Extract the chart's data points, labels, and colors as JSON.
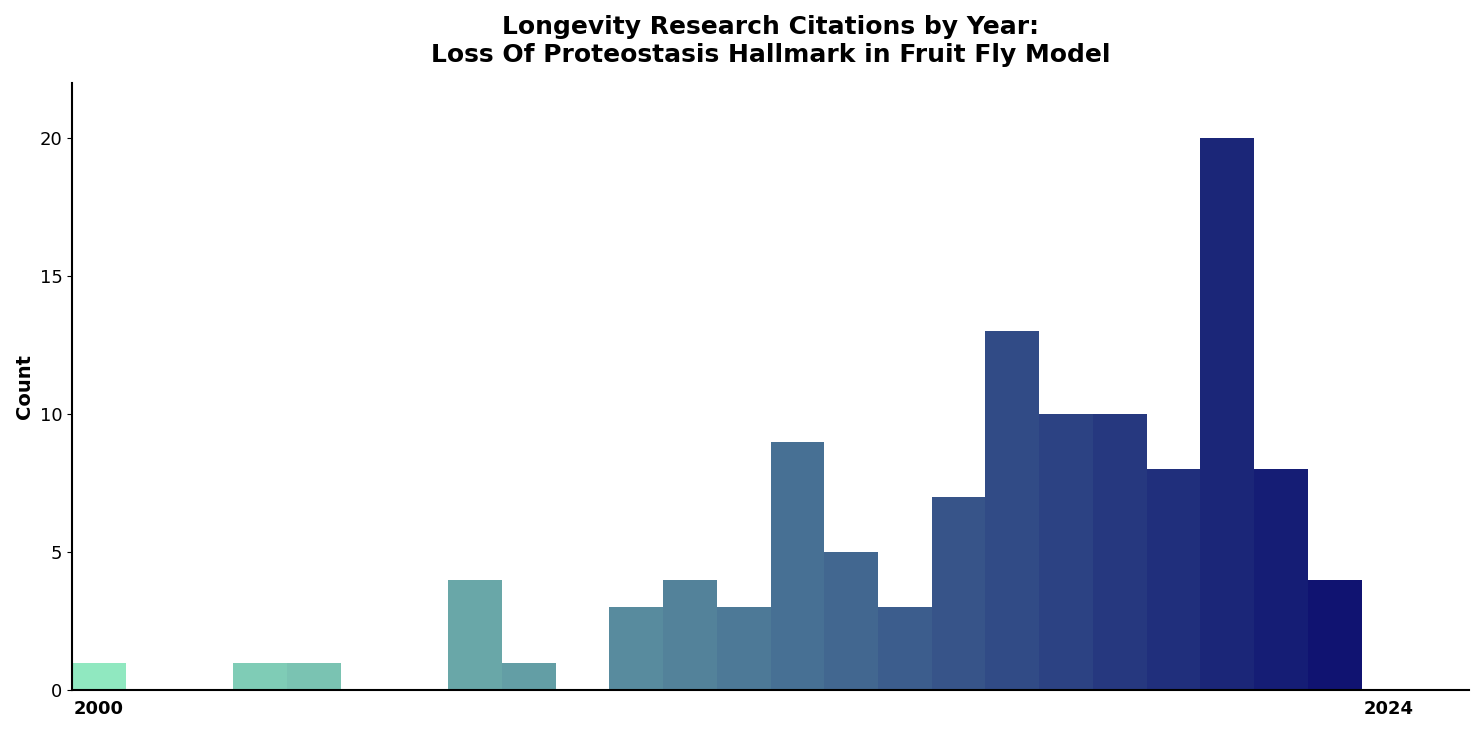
{
  "title_line1": "Longevity Research Citations by Year:",
  "title_line2": "Loss Of Proteostasis Hallmark in Fruit Fly Model",
  "xlabel": "",
  "ylabel": "Count",
  "years": [
    2000,
    2001,
    2002,
    2003,
    2004,
    2005,
    2006,
    2007,
    2008,
    2009,
    2010,
    2011,
    2012,
    2013,
    2014,
    2015,
    2016,
    2017,
    2018,
    2019,
    2020,
    2021,
    2022,
    2023,
    2024
  ],
  "counts": [
    1,
    0,
    0,
    1,
    1,
    0,
    0,
    4,
    1,
    0,
    3,
    4,
    3,
    9,
    5,
    3,
    7,
    13,
    10,
    10,
    8,
    20,
    8,
    4,
    0
  ],
  "ylim": [
    0,
    22
  ],
  "yticks": [
    0,
    5,
    10,
    15,
    20
  ],
  "xlim_left": 1999.5,
  "xlim_right": 2025.5,
  "xtick_left": 2000,
  "xtick_right": 2024,
  "bar_width": 1.0,
  "colormap_start": "#90e8c0",
  "colormap_end": "#0a0a6e",
  "background_color": "#ffffff",
  "title_fontsize": 18,
  "axis_label_fontsize": 14,
  "tick_fontsize": 13
}
